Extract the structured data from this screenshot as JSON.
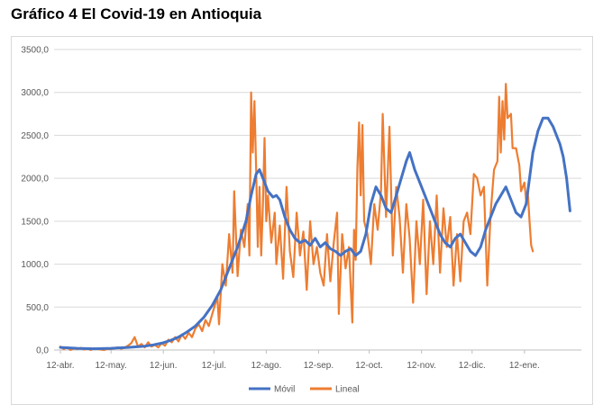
{
  "title": "Gráfico 4 El Covid-19 en Antioquia",
  "chart_data": {
    "type": "line",
    "title": "",
    "xlabel": "",
    "ylabel": "",
    "ylim": [
      0,
      3500
    ],
    "yticks": [
      "0,0",
      "500,0",
      "1000,0",
      "1500,0",
      "2000,0",
      "2500,0",
      "3000,0",
      "3500,0"
    ],
    "xticks": [
      {
        "label": "12-abr.",
        "day": 0
      },
      {
        "label": "12-may.",
        "day": 30
      },
      {
        "label": "12-jun.",
        "day": 61
      },
      {
        "label": "12-jul.",
        "day": 91
      },
      {
        "label": "12-ago.",
        "day": 122
      },
      {
        "label": "12-sep.",
        "day": 153
      },
      {
        "label": "12-oct.",
        "day": 183
      },
      {
        "label": "12-nov.",
        "day": 214
      },
      {
        "label": "12-dic.",
        "day": 244
      },
      {
        "label": "12-ene.",
        "day": 275
      }
    ],
    "grid": "horizontal",
    "legend_position": "bottom",
    "series": [
      {
        "name": "Móvil",
        "color": "#4472c4",
        "points": [
          [
            0,
            30
          ],
          [
            10,
            20
          ],
          [
            20,
            15
          ],
          [
            30,
            20
          ],
          [
            40,
            30
          ],
          [
            50,
            45
          ],
          [
            55,
            60
          ],
          [
            60,
            80
          ],
          [
            65,
            110
          ],
          [
            70,
            150
          ],
          [
            75,
            210
          ],
          [
            80,
            280
          ],
          [
            85,
            380
          ],
          [
            90,
            520
          ],
          [
            95,
            700
          ],
          [
            100,
            950
          ],
          [
            105,
            1200
          ],
          [
            110,
            1500
          ],
          [
            113,
            1800
          ],
          [
            116,
            2050
          ],
          [
            118,
            2100
          ],
          [
            120,
            2000
          ],
          [
            123,
            1850
          ],
          [
            126,
            1780
          ],
          [
            128,
            1800
          ],
          [
            130,
            1750
          ],
          [
            133,
            1550
          ],
          [
            136,
            1400
          ],
          [
            139,
            1300
          ],
          [
            142,
            1250
          ],
          [
            145,
            1280
          ],
          [
            148,
            1220
          ],
          [
            151,
            1300
          ],
          [
            154,
            1200
          ],
          [
            157,
            1250
          ],
          [
            160,
            1180
          ],
          [
            163,
            1150
          ],
          [
            166,
            1100
          ],
          [
            169,
            1150
          ],
          [
            172,
            1180
          ],
          [
            175,
            1100
          ],
          [
            178,
            1150
          ],
          [
            181,
            1350
          ],
          [
            184,
            1700
          ],
          [
            187,
            1900
          ],
          [
            190,
            1800
          ],
          [
            193,
            1650
          ],
          [
            196,
            1600
          ],
          [
            199,
            1800
          ],
          [
            202,
            2000
          ],
          [
            205,
            2200
          ],
          [
            207,
            2300
          ],
          [
            210,
            2100
          ],
          [
            213,
            1950
          ],
          [
            216,
            1800
          ],
          [
            219,
            1650
          ],
          [
            222,
            1500
          ],
          [
            225,
            1350
          ],
          [
            228,
            1250
          ],
          [
            231,
            1200
          ],
          [
            234,
            1300
          ],
          [
            237,
            1350
          ],
          [
            240,
            1250
          ],
          [
            243,
            1150
          ],
          [
            246,
            1100
          ],
          [
            249,
            1200
          ],
          [
            252,
            1400
          ],
          [
            255,
            1550
          ],
          [
            258,
            1700
          ],
          [
            261,
            1800
          ],
          [
            264,
            1900
          ],
          [
            267,
            1750
          ],
          [
            270,
            1600
          ],
          [
            273,
            1550
          ],
          [
            276,
            1700
          ],
          [
            278,
            2000
          ],
          [
            280,
            2300
          ],
          [
            283,
            2550
          ],
          [
            286,
            2700
          ],
          [
            289,
            2700
          ],
          [
            292,
            2600
          ],
          [
            294,
            2500
          ],
          [
            296,
            2400
          ],
          [
            298,
            2250
          ],
          [
            300,
            2000
          ],
          [
            302,
            1620
          ]
        ]
      },
      {
        "name": "Lineal",
        "color": "#ed7d31",
        "points": [
          [
            0,
            40
          ],
          [
            2,
            10
          ],
          [
            4,
            30
          ],
          [
            6,
            0
          ],
          [
            8,
            20
          ],
          [
            10,
            10
          ],
          [
            12,
            25
          ],
          [
            14,
            5
          ],
          [
            16,
            15
          ],
          [
            18,
            0
          ],
          [
            20,
            20
          ],
          [
            22,
            10
          ],
          [
            24,
            5
          ],
          [
            26,
            0
          ],
          [
            28,
            15
          ],
          [
            30,
            10
          ],
          [
            32,
            20
          ],
          [
            34,
            30
          ],
          [
            36,
            15
          ],
          [
            38,
            25
          ],
          [
            40,
            50
          ],
          [
            42,
            80
          ],
          [
            44,
            150
          ],
          [
            46,
            40
          ],
          [
            48,
            70
          ],
          [
            50,
            30
          ],
          [
            52,
            90
          ],
          [
            54,
            40
          ],
          [
            56,
            60
          ],
          [
            58,
            30
          ],
          [
            60,
            80
          ],
          [
            62,
            50
          ],
          [
            64,
            120
          ],
          [
            66,
            90
          ],
          [
            68,
            150
          ],
          [
            70,
            100
          ],
          [
            72,
            180
          ],
          [
            74,
            130
          ],
          [
            76,
            200
          ],
          [
            78,
            150
          ],
          [
            80,
            250
          ],
          [
            82,
            300
          ],
          [
            84,
            220
          ],
          [
            86,
            350
          ],
          [
            88,
            280
          ],
          [
            90,
            420
          ],
          [
            92,
            550
          ],
          [
            93,
            630
          ],
          [
            94,
            300
          ],
          [
            96,
            1000
          ],
          [
            98,
            750
          ],
          [
            100,
            1350
          ],
          [
            102,
            900
          ],
          [
            103,
            1850
          ],
          [
            105,
            860
          ],
          [
            107,
            1400
          ],
          [
            109,
            1200
          ],
          [
            111,
            1700
          ],
          [
            112,
            1100
          ],
          [
            113,
            3000
          ],
          [
            114,
            2300
          ],
          [
            115,
            2900
          ],
          [
            116,
            2100
          ],
          [
            117,
            1200
          ],
          [
            118,
            1900
          ],
          [
            119,
            1100
          ],
          [
            120,
            1700
          ],
          [
            121,
            2470
          ],
          [
            122,
            1500
          ],
          [
            123,
            1800
          ],
          [
            125,
            1250
          ],
          [
            127,
            1600
          ],
          [
            128,
            1000
          ],
          [
            130,
            1450
          ],
          [
            132,
            830
          ],
          [
            134,
            1900
          ],
          [
            136,
            1150
          ],
          [
            138,
            850
          ],
          [
            140,
            1600
          ],
          [
            142,
            1100
          ],
          [
            144,
            1380
          ],
          [
            146,
            700
          ],
          [
            148,
            1500
          ],
          [
            150,
            1000
          ],
          [
            152,
            1200
          ],
          [
            154,
            900
          ],
          [
            156,
            750
          ],
          [
            158,
            1350
          ],
          [
            160,
            800
          ],
          [
            162,
            1250
          ],
          [
            164,
            1600
          ],
          [
            165,
            420
          ],
          [
            167,
            1350
          ],
          [
            169,
            950
          ],
          [
            171,
            1200
          ],
          [
            173,
            320
          ],
          [
            174,
            1400
          ],
          [
            175,
            1050
          ],
          [
            176,
            2120
          ],
          [
            177,
            2650
          ],
          [
            178,
            1800
          ],
          [
            179,
            2620
          ],
          [
            180,
            1500
          ],
          [
            182,
            1350
          ],
          [
            184,
            1000
          ],
          [
            186,
            1700
          ],
          [
            188,
            1400
          ],
          [
            190,
            1850
          ],
          [
            191,
            2750
          ],
          [
            193,
            1550
          ],
          [
            195,
            2600
          ],
          [
            197,
            1100
          ],
          [
            199,
            1900
          ],
          [
            201,
            1550
          ],
          [
            203,
            900
          ],
          [
            205,
            1700
          ],
          [
            207,
            1300
          ],
          [
            209,
            550
          ],
          [
            211,
            1500
          ],
          [
            213,
            1000
          ],
          [
            215,
            1750
          ],
          [
            217,
            650
          ],
          [
            219,
            1500
          ],
          [
            221,
            1000
          ],
          [
            223,
            1800
          ],
          [
            225,
            900
          ],
          [
            227,
            1650
          ],
          [
            229,
            1200
          ],
          [
            231,
            1550
          ],
          [
            233,
            750
          ],
          [
            235,
            1350
          ],
          [
            237,
            800
          ],
          [
            239,
            1500
          ],
          [
            241,
            1600
          ],
          [
            243,
            1350
          ],
          [
            245,
            2050
          ],
          [
            247,
            2000
          ],
          [
            249,
            1800
          ],
          [
            251,
            1900
          ],
          [
            253,
            750
          ],
          [
            255,
            1600
          ],
          [
            257,
            2100
          ],
          [
            259,
            2200
          ],
          [
            260,
            2950
          ],
          [
            261,
            2300
          ],
          [
            262,
            2900
          ],
          [
            263,
            2450
          ],
          [
            264,
            3100
          ],
          [
            265,
            2700
          ],
          [
            267,
            2750
          ],
          [
            268,
            2350
          ],
          [
            270,
            2350
          ],
          [
            272,
            2150
          ],
          [
            273,
            1850
          ],
          [
            275,
            1950
          ],
          [
            276,
            1750
          ],
          [
            277,
            1830
          ],
          [
            278,
            1500
          ],
          [
            279,
            1220
          ],
          [
            280,
            1150
          ]
        ]
      }
    ]
  }
}
